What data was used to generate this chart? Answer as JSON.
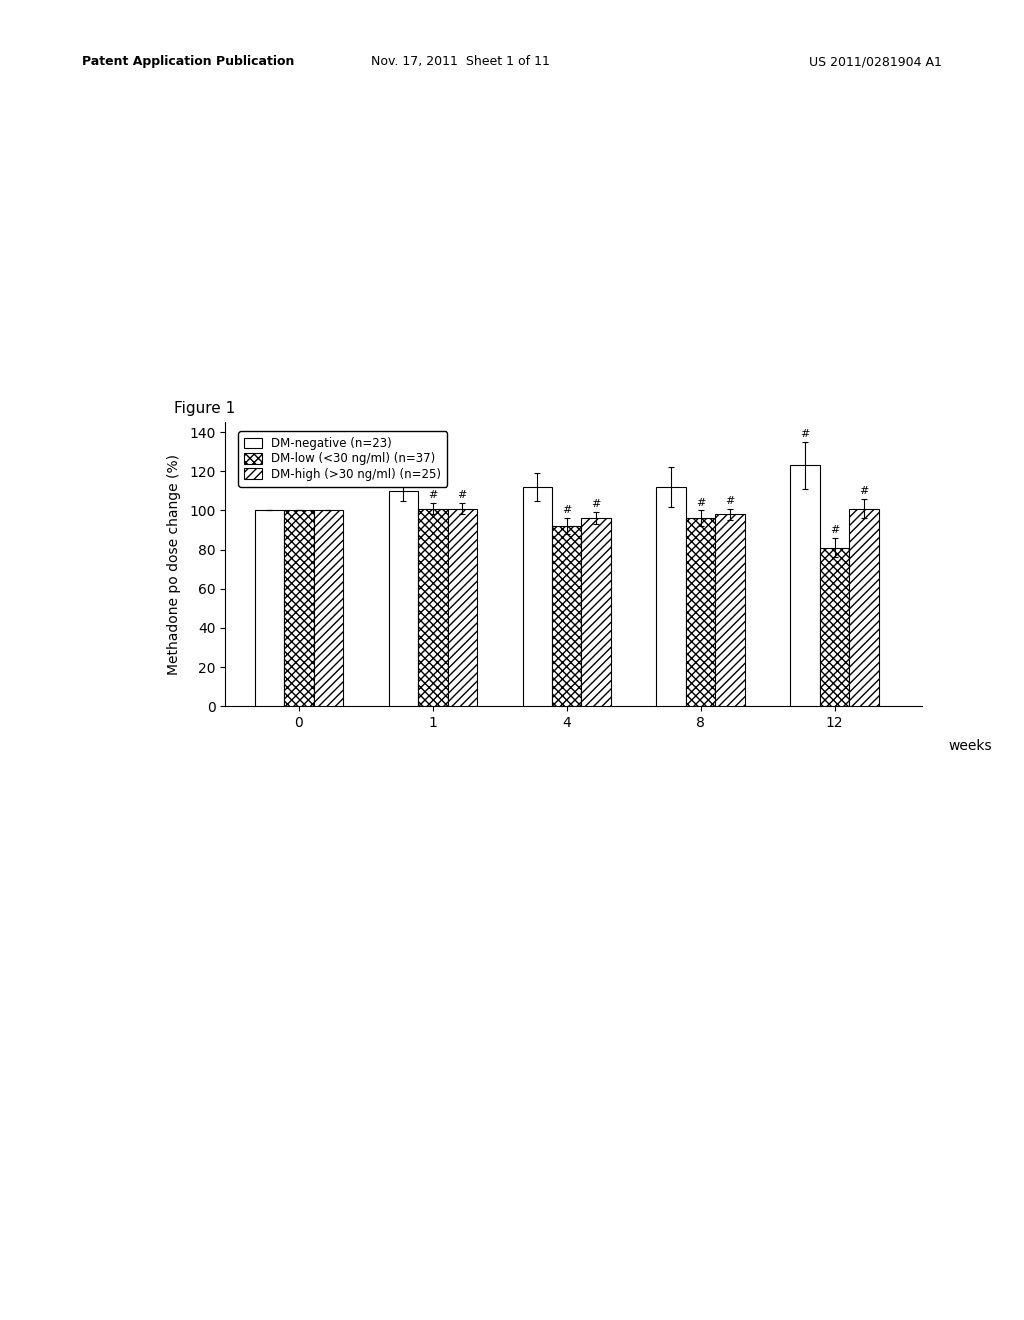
{
  "title": "Figure 1",
  "ylabel": "Methadone po dose change (%)",
  "xlabel_end": "weeks",
  "categories": [
    0,
    1,
    4,
    8,
    12
  ],
  "bar_values": {
    "negative": [
      100,
      110,
      112,
      112,
      123
    ],
    "low": [
      100,
      101,
      92,
      96,
      81
    ],
    "high": [
      100,
      101,
      96,
      98,
      101
    ]
  },
  "error_bars": {
    "negative": [
      0,
      5,
      7,
      10,
      12
    ],
    "low": [
      0,
      3,
      4,
      4,
      5
    ],
    "high": [
      0,
      3,
      3,
      3,
      5
    ]
  },
  "legend_labels": [
    "DM-negative (n=23)",
    "DM-low (<30 ng/ml) (n=37)",
    "DM-high (>30 ng/ml) (n=25)"
  ],
  "ylim": [
    0,
    145
  ],
  "yticks": [
    0,
    20,
    40,
    60,
    80,
    100,
    120,
    140
  ],
  "bar_width": 0.22,
  "background_color": "#ffffff",
  "bar_edge_color": "#000000",
  "axis_fontsize": 10,
  "tick_fontsize": 10,
  "header_left": "Patent Application Publication",
  "header_mid": "Nov. 17, 2011  Sheet 1 of 11",
  "header_right": "US 2011/0281904 A1"
}
